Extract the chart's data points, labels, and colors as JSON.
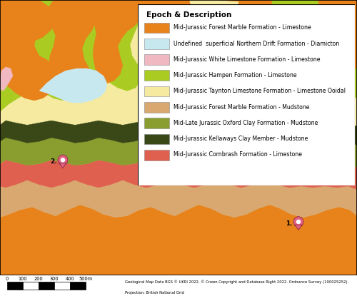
{
  "legend_title": "Epoch & Description",
  "legend_entries": [
    {
      "color": "#E8821A",
      "label": "Mid-Jurassic Forest Marble Formation - Limestone"
    },
    {
      "color": "#C8E8F0",
      "label": "Undefined  superficial Northern Drift Formation - Diamicton"
    },
    {
      "color": "#F0B8C0",
      "label": "Mid-Jurassic White Limestone Formation - Limestone"
    },
    {
      "color": "#AACC22",
      "label": "Mid-Jurassic Hampen Formation - Limestone"
    },
    {
      "color": "#F5EAA0",
      "label": "Mid-Jurassic Taynton Limestone Formation - Limestone Ooidal"
    },
    {
      "color": "#D8A870",
      "label": "Mid-Jurassic Forest Marble Formation - Mudstone"
    },
    {
      "color": "#8A9E30",
      "label": "Mid-Late Jurassic Oxford Clay Formation - Mudstone"
    },
    {
      "color": "#3A4818",
      "label": "Mid-Jurassic Kellaways Clay Member - Mudstone"
    },
    {
      "color": "#E06050",
      "label": "Mid-Jurassic Cornbrash Formation - Limestone"
    }
  ],
  "copyright_text": "Geological Map Data BGS © UKRI 2022. © Crown Copyright and Database Right 2022. Ordnance Survey (100025252).",
  "projection_text": "Projection: British National Grid",
  "figsize": [
    5.0,
    4.22
  ],
  "dpi": 100
}
